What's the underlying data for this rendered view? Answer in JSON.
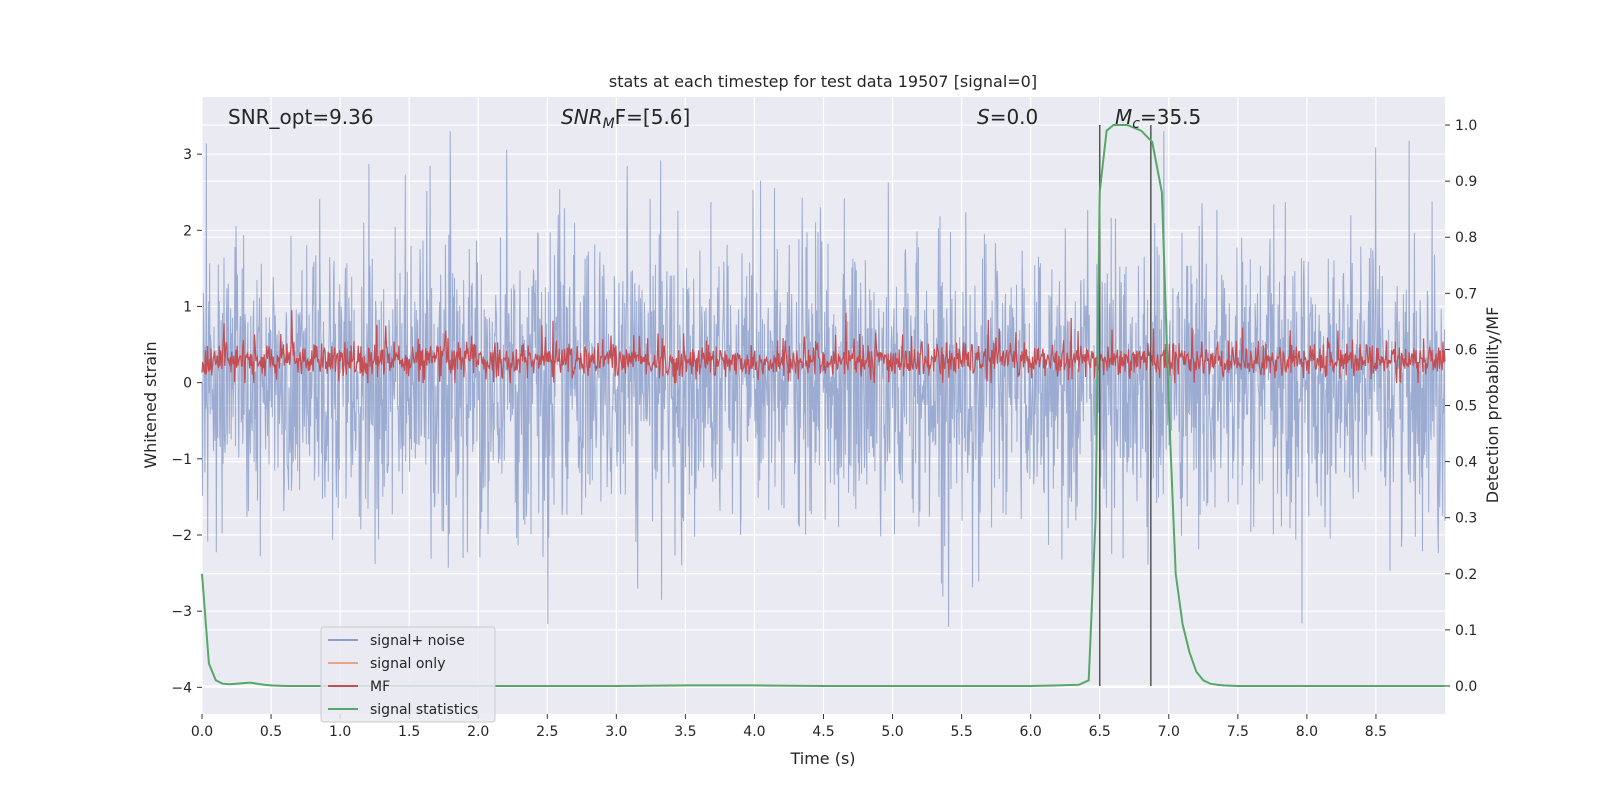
{
  "chart_data": {
    "type": "line",
    "title": "stats at each timestep for test data 19507 [signal=0]",
    "xlabel": "Time (s)",
    "ylabel_left": "Whitened strain",
    "ylabel_right": "Detection probability/MF",
    "xlim": [
      0.0,
      9.0
    ],
    "ylim_left": [
      -4.35,
      3.75
    ],
    "ylim_right": [
      -0.05,
      1.05
    ],
    "x_ticks": [
      "0.0",
      "0.5",
      "1.0",
      "1.5",
      "2.0",
      "2.5",
      "3.0",
      "3.5",
      "4.0",
      "4.5",
      "5.0",
      "5.5",
      "6.0",
      "6.5",
      "7.0",
      "7.5",
      "8.0",
      "8.5"
    ],
    "y_ticks_left": [
      "3",
      "2",
      "1",
      "0",
      "−1",
      "−2",
      "−3",
      "−4"
    ],
    "y_ticks_right": [
      "1.0",
      "0.9",
      "0.8",
      "0.7",
      "0.6",
      "0.5",
      "0.4",
      "0.3",
      "0.2",
      "0.1",
      "0.0"
    ],
    "grid": true,
    "legend_position": "lower-left",
    "annotations": {
      "snr_opt": "SNR_opt=9.36",
      "snr_mf_main": "SNR",
      "snr_mf_sub": "M",
      "snr_mf_rest": "F=[5.6]",
      "s_symbol": "S",
      "s_rest": "=0.0",
      "mc_symbol": "M",
      "mc_sub": "c",
      "mc_rest": "=35.5"
    },
    "vertical_lines_x": [
      6.5,
      6.87
    ],
    "series": [
      {
        "name": "signal+ noise",
        "color": "#8da0cb",
        "description": "whitened strain noise, roughly ±1.8 std envelope, peaks to about ±3.3",
        "y_range": [
          -4.0,
          3.3
        ]
      },
      {
        "name": "signal only",
        "color": "#e8a38a",
        "values": []
      },
      {
        "name": "MF",
        "color": "#c44e52",
        "y_range": [
          0.0,
          1.0
        ]
      },
      {
        "name": "signal statistics",
        "color": "#55a868",
        "x": [
          0.0,
          0.05,
          0.1,
          0.15,
          0.2,
          0.25,
          0.3,
          0.35,
          0.4,
          0.45,
          0.5,
          0.6,
          0.7,
          0.8,
          1.0,
          1.5,
          2.0,
          2.5,
          3.0,
          3.5,
          4.0,
          4.5,
          5.0,
          5.5,
          6.0,
          6.2,
          6.35,
          6.42,
          6.47,
          6.5,
          6.55,
          6.6,
          6.7,
          6.8,
          6.88,
          6.95,
          7.0,
          7.05,
          7.1,
          7.15,
          7.2,
          7.25,
          7.3,
          7.35,
          7.4,
          7.5,
          8.0,
          8.5,
          9.0
        ],
        "values": [
          0.2,
          0.04,
          0.01,
          0.004,
          0.003,
          0.004,
          0.005,
          0.006,
          0.004,
          0.002,
          0.001,
          0.0,
          0.0,
          0.0,
          0.0,
          0.0,
          0.0,
          0.0,
          0.0,
          0.001,
          0.001,
          0.0,
          0.0,
          0.0,
          0.0,
          0.001,
          0.002,
          0.01,
          0.3,
          0.88,
          0.99,
          1.0,
          1.0,
          0.99,
          0.97,
          0.88,
          0.5,
          0.2,
          0.11,
          0.06,
          0.025,
          0.01,
          0.004,
          0.002,
          0.001,
          0.0,
          0.0,
          0.0,
          0.0
        ]
      }
    ]
  }
}
